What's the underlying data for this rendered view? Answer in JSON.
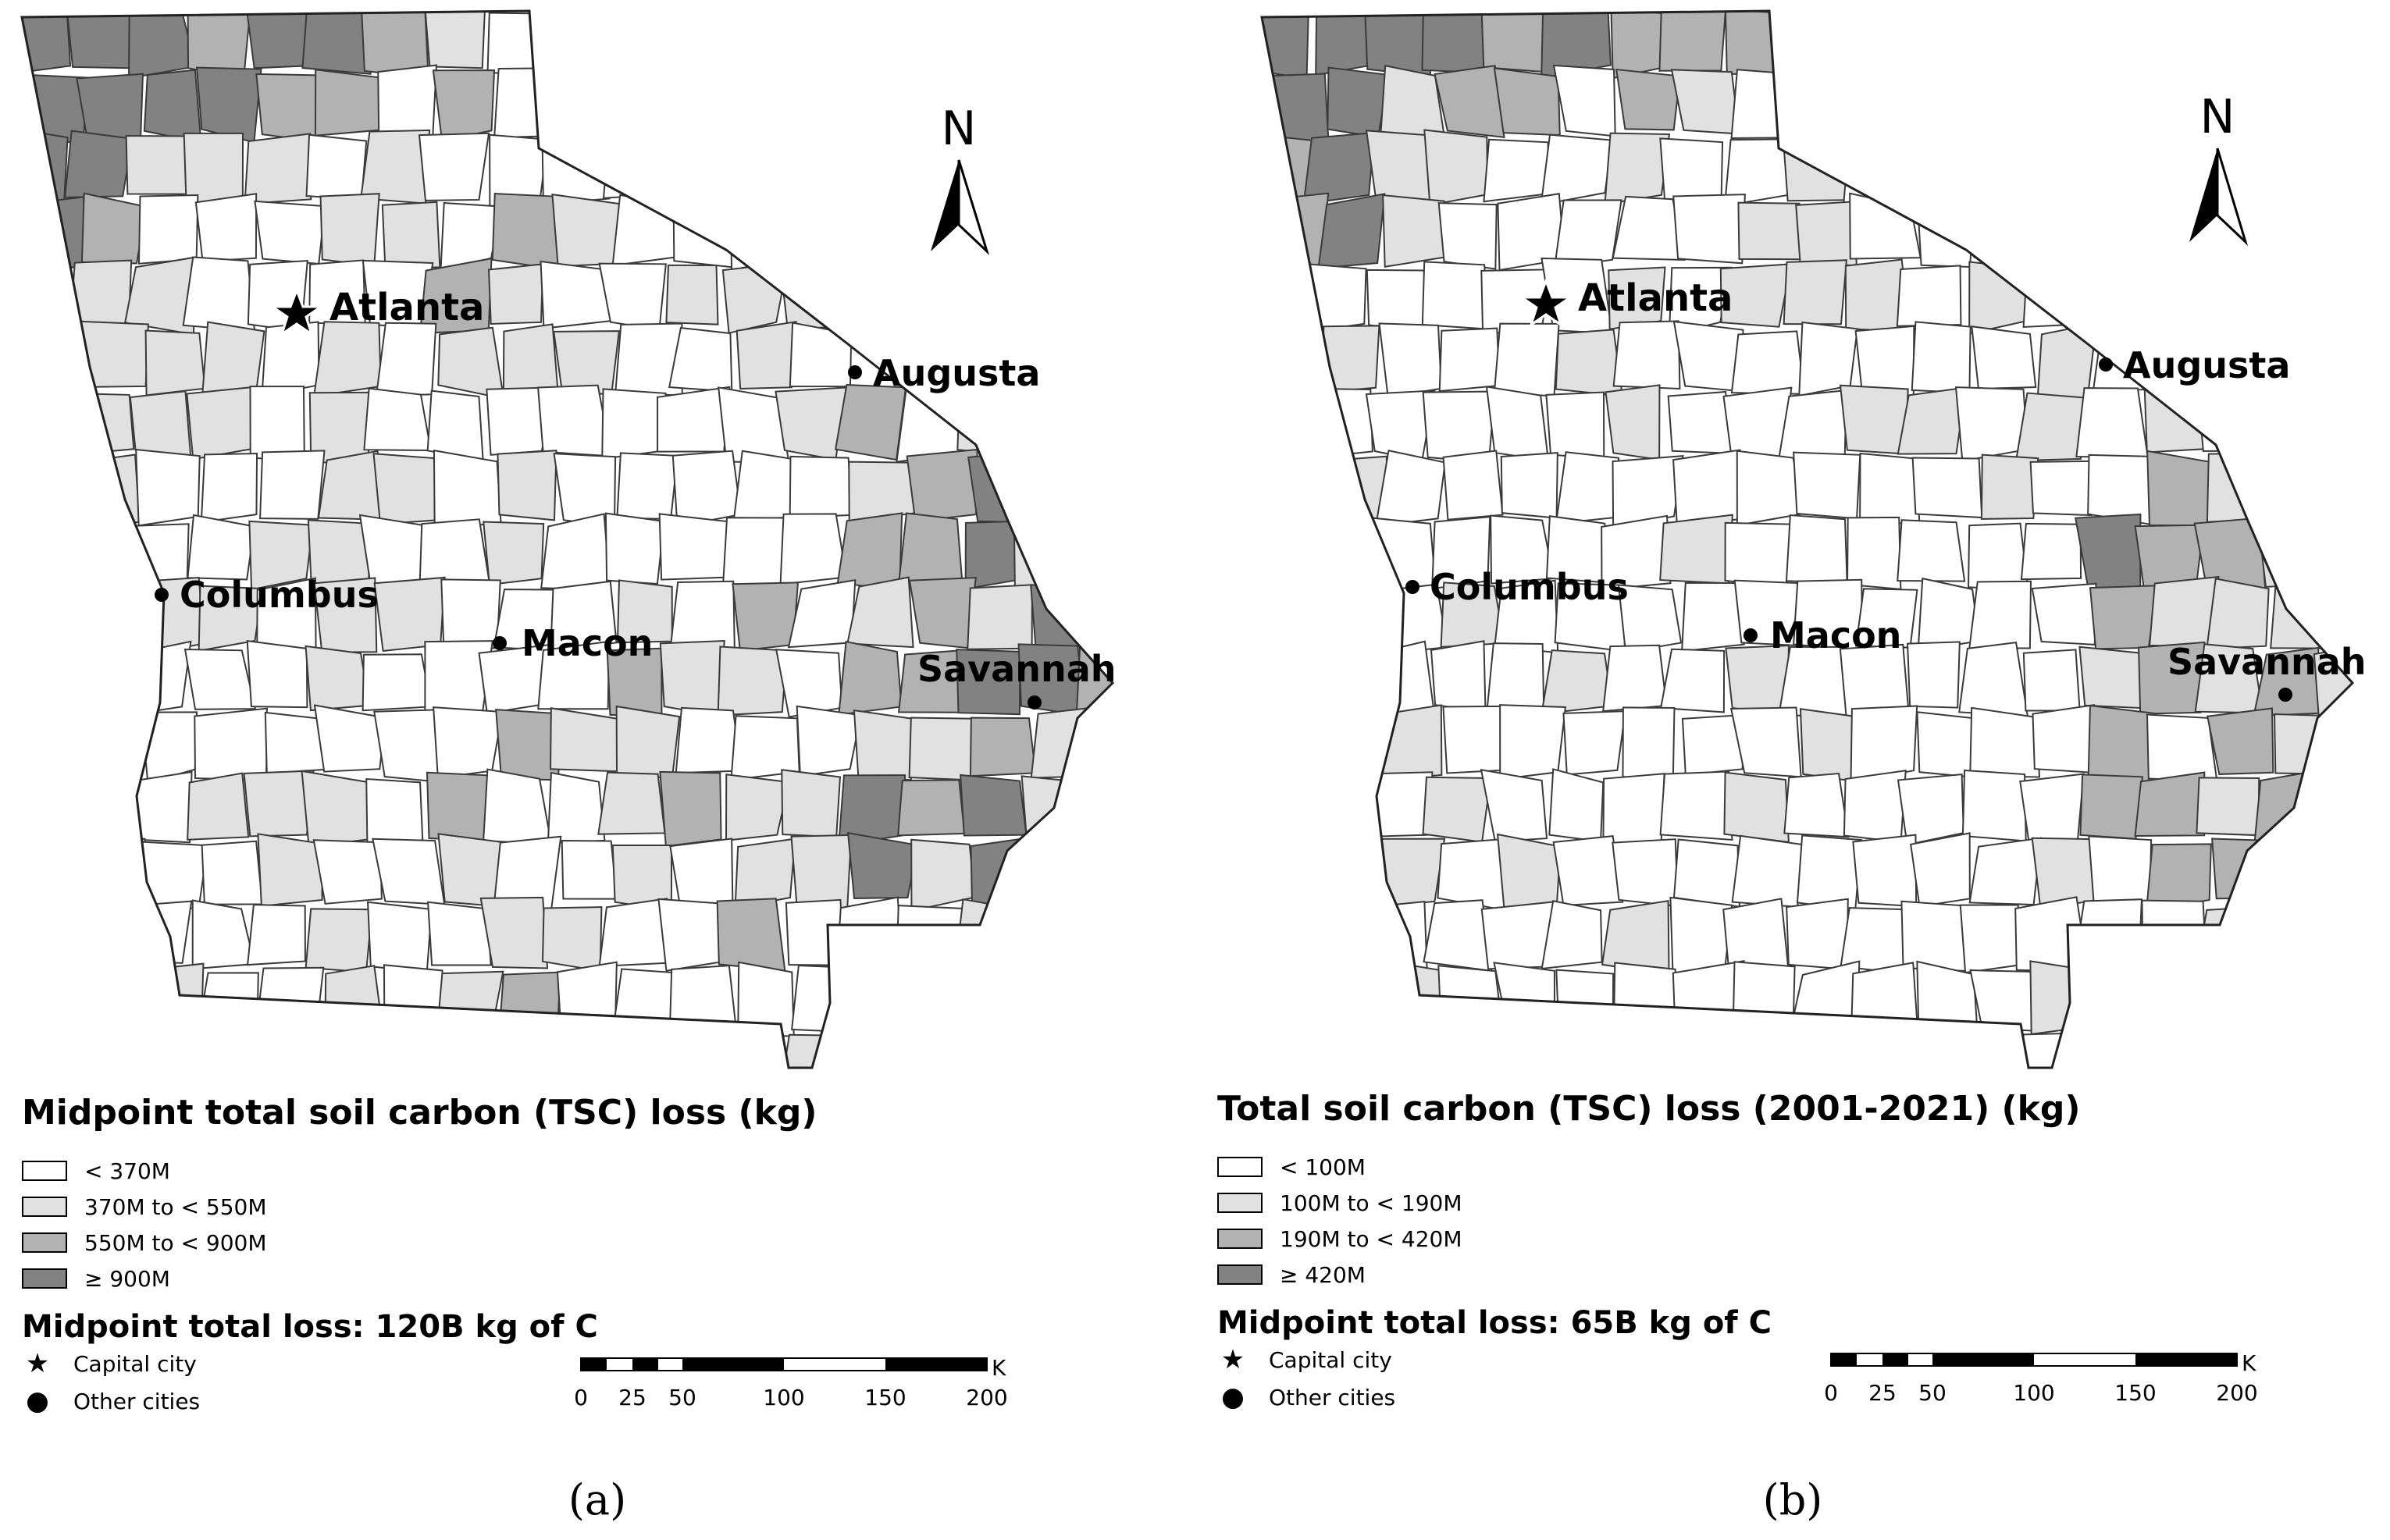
{
  "panels": [
    {
      "legend_title": "Midpoint total soil carbon (TSC) loss (kg)",
      "classes": [
        {
          "label": "< 370M",
          "color": "#ffffff"
        },
        {
          "label": "370M to < 550M",
          "color": "#e1e1e1"
        },
        {
          "label": "550M to < 900M",
          "color": "#b2b2b2"
        },
        {
          "label": "≥ 900M",
          "color": "#828282"
        }
      ],
      "total": "Midpoint total loss: 120B kg of C",
      "caption": "(a)"
    },
    {
      "legend_title": "Total soil carbon (TSC) loss (2001-2021) (kg)",
      "classes": [
        {
          "label": "< 100M",
          "color": "#ffffff"
        },
        {
          "label": "100M to < 190M",
          "color": "#e1e1e1"
        },
        {
          "label": "190M to < 420M",
          "color": "#b2b2b2"
        },
        {
          "label": "≥ 420M",
          "color": "#828282"
        }
      ],
      "total": "Midpoint total loss: 65B kg of C",
      "caption": "(b)"
    }
  ],
  "cities": {
    "capital": "Atlanta",
    "others": [
      "Augusta",
      "Columbus",
      "Macon",
      "Savannah"
    ]
  },
  "symbols": {
    "capital_label": "Capital city",
    "capital_icon": "star-icon",
    "other_label": "Other cities",
    "other_icon": "dot-icon"
  },
  "north_arrow": {
    "label": "N",
    "icon": "north-arrow-icon"
  },
  "scalebar": {
    "unit": "Kilometers",
    "ticks": [
      "0",
      "25",
      "50",
      "100",
      "150",
      "200"
    ]
  }
}
